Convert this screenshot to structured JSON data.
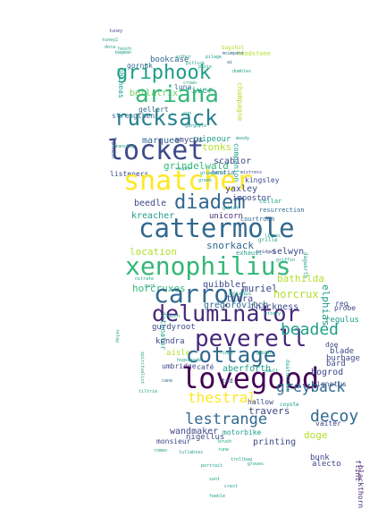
{
  "colors": {
    "yellow": "#fde725",
    "lime": "#b5de2b",
    "green": "#6ece58",
    "teal_green": "#35b779",
    "teal": "#1f9e89",
    "blue_teal": "#26828e",
    "blue": "#31688e",
    "indigo": "#3e4989",
    "purple": "#482878",
    "dark": "#440154"
  },
  "words": [
    {
      "text": "tuney",
      "color": "indigo"
    },
    {
      "text": "gornuk",
      "color": "blue"
    },
    {
      "text": "phineas",
      "color": "teal"
    },
    {
      "text": "bookcase",
      "color": "blue"
    },
    {
      "text": "luna",
      "color": "blue"
    },
    {
      "text": "griphook",
      "color": "teal"
    },
    {
      "text": "bellatrix",
      "color": "green"
    },
    {
      "text": "river",
      "color": "teal"
    },
    {
      "text": "gellert",
      "color": "blue"
    },
    {
      "text": "strengthen",
      "color": "blue"
    },
    {
      "text": "ariana",
      "color": "teal_green"
    },
    {
      "text": "rucksack",
      "color": "blue_teal"
    },
    {
      "text": "champagne",
      "color": "lime"
    },
    {
      "text": "marquee",
      "color": "blue"
    },
    {
      "text": "token",
      "color": "blue"
    },
    {
      "text": "tonks",
      "color": "lime"
    },
    {
      "text": "ruipeour",
      "color": "teal"
    },
    {
      "text": "amycus",
      "color": "indigo"
    },
    {
      "text": "companion",
      "color": "teal"
    },
    {
      "text": "locket",
      "color": "indigo"
    },
    {
      "text": "listeners",
      "color": "indigo"
    },
    {
      "text": "grindelwald",
      "color": "teal_green"
    },
    {
      "text": "scabior",
      "color": "indigo"
    },
    {
      "text": "hestia",
      "color": "blue"
    },
    {
      "text": "snatcher",
      "color": "yellow"
    },
    {
      "text": "yaxley",
      "color": "indigo"
    },
    {
      "text": "kingsley",
      "color": "indigo"
    },
    {
      "text": "diadem",
      "color": "blue"
    },
    {
      "text": "impostor",
      "color": "indigo"
    },
    {
      "text": "cellar",
      "color": "teal"
    },
    {
      "text": "beedle",
      "color": "indigo"
    },
    {
      "text": "unicorn",
      "color": "purple"
    },
    {
      "text": "kreacher",
      "color": "teal"
    },
    {
      "text": "courtroom",
      "color": "blue"
    },
    {
      "text": "resurrection",
      "color": "blue"
    },
    {
      "text": "cattermole",
      "color": "blue"
    },
    {
      "text": "location",
      "color": "lime"
    },
    {
      "text": "snorkack",
      "color": "blue"
    },
    {
      "text": "selwyn",
      "color": "indigo"
    },
    {
      "text": "exhaust",
      "color": "teal"
    },
    {
      "text": "xenophilius",
      "color": "teal_green"
    },
    {
      "text": "horcruxes",
      "color": "teal_green"
    },
    {
      "text": "quibbler",
      "color": "indigo"
    },
    {
      "text": "muriel",
      "color": "indigo"
    },
    {
      "text": "carrow",
      "color": "blue"
    },
    {
      "text": "horcrux",
      "color": "lime"
    },
    {
      "text": "detonator",
      "color": "teal"
    },
    {
      "text": "deluminator",
      "color": "purple"
    },
    {
      "text": "gregorovitch",
      "color": "blue"
    },
    {
      "text": "thickness",
      "color": "indigo"
    },
    {
      "text": "gurdyroot",
      "color": "indigo"
    },
    {
      "text": "peverell",
      "color": "purple"
    },
    {
      "text": "kendra",
      "color": "indigo"
    },
    {
      "text": "aisle",
      "color": "lime"
    },
    {
      "text": "cottage",
      "color": "blue"
    },
    {
      "text": "umbridge",
      "color": "indigo"
    },
    {
      "text": "café",
      "color": "indigo"
    },
    {
      "text": "aberforth",
      "color": "teal"
    },
    {
      "text": "lovegood",
      "color": "dark"
    },
    {
      "text": "thestral",
      "color": "yellow"
    },
    {
      "text": "greyback",
      "color": "blue"
    },
    {
      "text": "bogrod",
      "color": "indigo"
    },
    {
      "text": "ignotus",
      "color": "indigo"
    },
    {
      "text": "hallow",
      "color": "indigo"
    },
    {
      "text": "travers",
      "color": "indigo"
    },
    {
      "text": "lestrange",
      "color": "blue"
    },
    {
      "text": "decoy",
      "color": "blue"
    },
    {
      "text": "wandmaker",
      "color": "indigo"
    },
    {
      "text": "doge",
      "color": "lime"
    },
    {
      "text": "monsieur",
      "color": "indigo"
    },
    {
      "text": "motorbike",
      "color": "teal"
    },
    {
      "text": "vaiter",
      "color": "indigo"
    },
    {
      "text": "bunk",
      "color": "indigo"
    },
    {
      "text": "alecto",
      "color": "indigo"
    },
    {
      "text": "elphias",
      "color": "teal"
    },
    {
      "text": "blackthorn",
      "color": "purple"
    },
    {
      "text": "bathilda",
      "color": "lime"
    },
    {
      "text": "beaded",
      "color": "teal"
    },
    {
      "text": "probe",
      "color": "indigo"
    },
    {
      "text": "regulus",
      "color": "teal"
    },
    {
      "text": "doe",
      "color": "indigo"
    },
    {
      "text": "blade",
      "color": "indigo"
    },
    {
      "text": "burbage",
      "color": "indigo"
    },
    {
      "text": "bard",
      "color": "indigo"
    },
    {
      "text": "nigellus",
      "color": "indigo"
    },
    {
      "text": "printing",
      "color": "indigo"
    },
    {
      "text": "tiara",
      "color": "indigo"
    },
    {
      "text": "reg",
      "color": "indigo"
    },
    {
      "text": "flint",
      "color": "purple"
    },
    {
      "text": "ted",
      "color": "indigo"
    },
    {
      "text": "dagworth",
      "color": "teal"
    },
    {
      "text": "headstone",
      "color": "lime"
    },
    {
      "text": "arcanus",
      "color": "teal"
    },
    {
      "text": "hogsmeade",
      "color": "teal"
    },
    {
      "text": "griffin",
      "color": "teal"
    },
    {
      "text": "cane",
      "color": "blue"
    },
    {
      "text": "grille",
      "color": "teal"
    },
    {
      "text": "bagshot",
      "color": "lime"
    },
    {
      "text": "mcumpent",
      "color": "blue"
    },
    {
      "text": "pitlick",
      "color": "teal"
    },
    {
      "text": "pilage",
      "color": "teal"
    },
    {
      "text": "dumbles",
      "color": "teal"
    },
    {
      "text": "deathstick",
      "color": "teal"
    },
    {
      "text": "lilies",
      "color": "teal"
    },
    {
      "text": "bridget",
      "color": "indigo"
    },
    {
      "text": "ottery",
      "color": "teal"
    },
    {
      "text": "dora",
      "color": "teal"
    },
    {
      "text": "ai",
      "color": "blue"
    },
    {
      "text": "mistress",
      "color": "indigo"
    },
    {
      "text": "transfig",
      "color": "teal"
    },
    {
      "text": "stupor",
      "color": "teal"
    },
    {
      "text": "grimmauld",
      "color": "teal"
    },
    {
      "text": "greek",
      "color": "teal"
    },
    {
      "text": "gargoyle",
      "color": "teal"
    },
    {
      "text": "moody",
      "color": "teal"
    },
    {
      "text": "goblet",
      "color": "teal"
    },
    {
      "text": "tuney2",
      "color": "teal"
    },
    {
      "text": "bagman",
      "color": "teal"
    },
    {
      "text": "hooch",
      "color": "teal"
    },
    {
      "text": "arthur",
      "color": "teal"
    },
    {
      "text": "cup",
      "color": "teal"
    },
    {
      "text": "relay",
      "color": "teal"
    },
    {
      "text": "mark",
      "color": "teal"
    },
    {
      "text": "pixie",
      "color": "teal"
    },
    {
      "text": "crown",
      "color": "teal"
    },
    {
      "text": "romeo",
      "color": "teal"
    },
    {
      "text": "lullabies",
      "color": "teal"
    },
    {
      "text": "coyote",
      "color": "teal"
    },
    {
      "text": "goblin",
      "color": "teal"
    },
    {
      "text": "vault",
      "color": "teal"
    },
    {
      "text": "rune",
      "color": "teal"
    },
    {
      "text": "sunt",
      "color": "teal"
    },
    {
      "text": "crest",
      "color": "teal"
    },
    {
      "text": "feeble",
      "color": "teal"
    },
    {
      "text": "spiritualist",
      "color": "teal"
    },
    {
      "text": "nitrate",
      "color": "teal"
    },
    {
      "text": "rings",
      "color": "teal"
    },
    {
      "text": "tiltrie",
      "color": "teal"
    },
    {
      "text": "graves",
      "color": "teal"
    },
    {
      "text": "portrait",
      "color": "teal"
    },
    {
      "text": "hatch",
      "color": "teal"
    },
    {
      "text": "trollbag",
      "color": "teal"
    },
    {
      "text": "brush",
      "color": "teal"
    }
  ]
}
